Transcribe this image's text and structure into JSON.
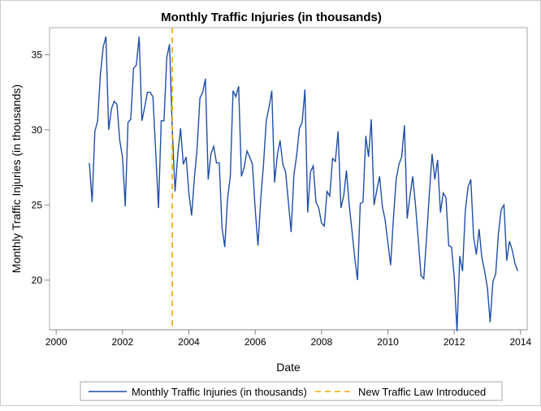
{
  "chart_data": {
    "type": "line",
    "title": "Monthly Traffic Injuries (in thousands)",
    "xlabel": "Date",
    "ylabel": "Monthly Traffic Injuries (in thousands)",
    "xlim": [
      1999.8,
      2014.2
    ],
    "ylim": [
      16.7,
      36.8
    ],
    "xticks": [
      "2000",
      "2002",
      "2004",
      "2006",
      "2008",
      "2010",
      "2012",
      "2014"
    ],
    "yticks": [
      "20",
      "25",
      "30",
      "35"
    ],
    "grid": false,
    "legend_position": "bottom",
    "start": "2001-01",
    "series": [
      {
        "name": "Monthly Traffic Injuries (in thousands)",
        "color": "#1f4fa8",
        "style": "solid",
        "values": [
          27.8,
          25.2,
          29.9,
          30.6,
          33.7,
          35.5,
          36.2,
          30.0,
          31.4,
          31.9,
          31.7,
          29.3,
          28.2,
          24.9,
          30.5,
          30.7,
          34.1,
          34.3,
          36.2,
          30.6,
          31.5,
          32.5,
          32.5,
          32.2,
          28.5,
          24.8,
          30.6,
          30.6,
          34.8,
          35.7,
          30.0,
          25.9,
          28.4,
          30.1,
          27.7,
          28.2,
          25.8,
          24.3,
          26.8,
          28.8,
          32.1,
          32.5,
          33.4,
          26.7,
          28.4,
          28.9,
          27.8,
          27.8,
          23.5,
          22.2,
          25.4,
          26.9,
          32.6,
          32.2,
          32.9,
          26.9,
          27.5,
          28.6,
          28.2,
          27.7,
          24.7,
          22.3,
          25.4,
          27.7,
          30.6,
          31.5,
          32.6,
          26.5,
          28.3,
          29.3,
          27.7,
          27.2,
          25.2,
          23.2,
          27.0,
          28.3,
          30.1,
          30.5,
          32.7,
          24.5,
          27.2,
          27.6,
          25.2,
          24.8,
          23.8,
          23.6,
          25.9,
          25.6,
          28.1,
          27.9,
          29.9,
          24.8,
          25.6,
          27.3,
          25.0,
          23.3,
          21.5,
          20.0,
          25.1,
          25.2,
          29.6,
          28.2,
          30.7,
          25.0,
          26.0,
          26.9,
          24.9,
          24.0,
          22.5,
          21.0,
          24.1,
          26.7,
          27.7,
          28.2,
          30.3,
          24.1,
          25.6,
          26.9,
          25.0,
          22.7,
          20.3,
          20.1,
          22.8,
          25.7,
          28.4,
          26.7,
          28.0,
          24.5,
          25.8,
          25.5,
          22.3,
          22.2,
          20.2,
          16.6,
          21.6,
          20.6,
          24.6,
          26.2,
          26.7,
          22.9,
          21.7,
          23.4,
          21.5,
          20.6,
          19.5,
          17.2,
          19.9,
          20.4,
          23.1,
          24.7,
          25.0,
          21.3,
          22.6,
          22.0,
          21.1,
          20.6
        ]
      },
      {
        "name": "New Traffic Law Introduced",
        "color": "#f0a800",
        "style": "dashed",
        "x": "2003-07"
      }
    ]
  }
}
